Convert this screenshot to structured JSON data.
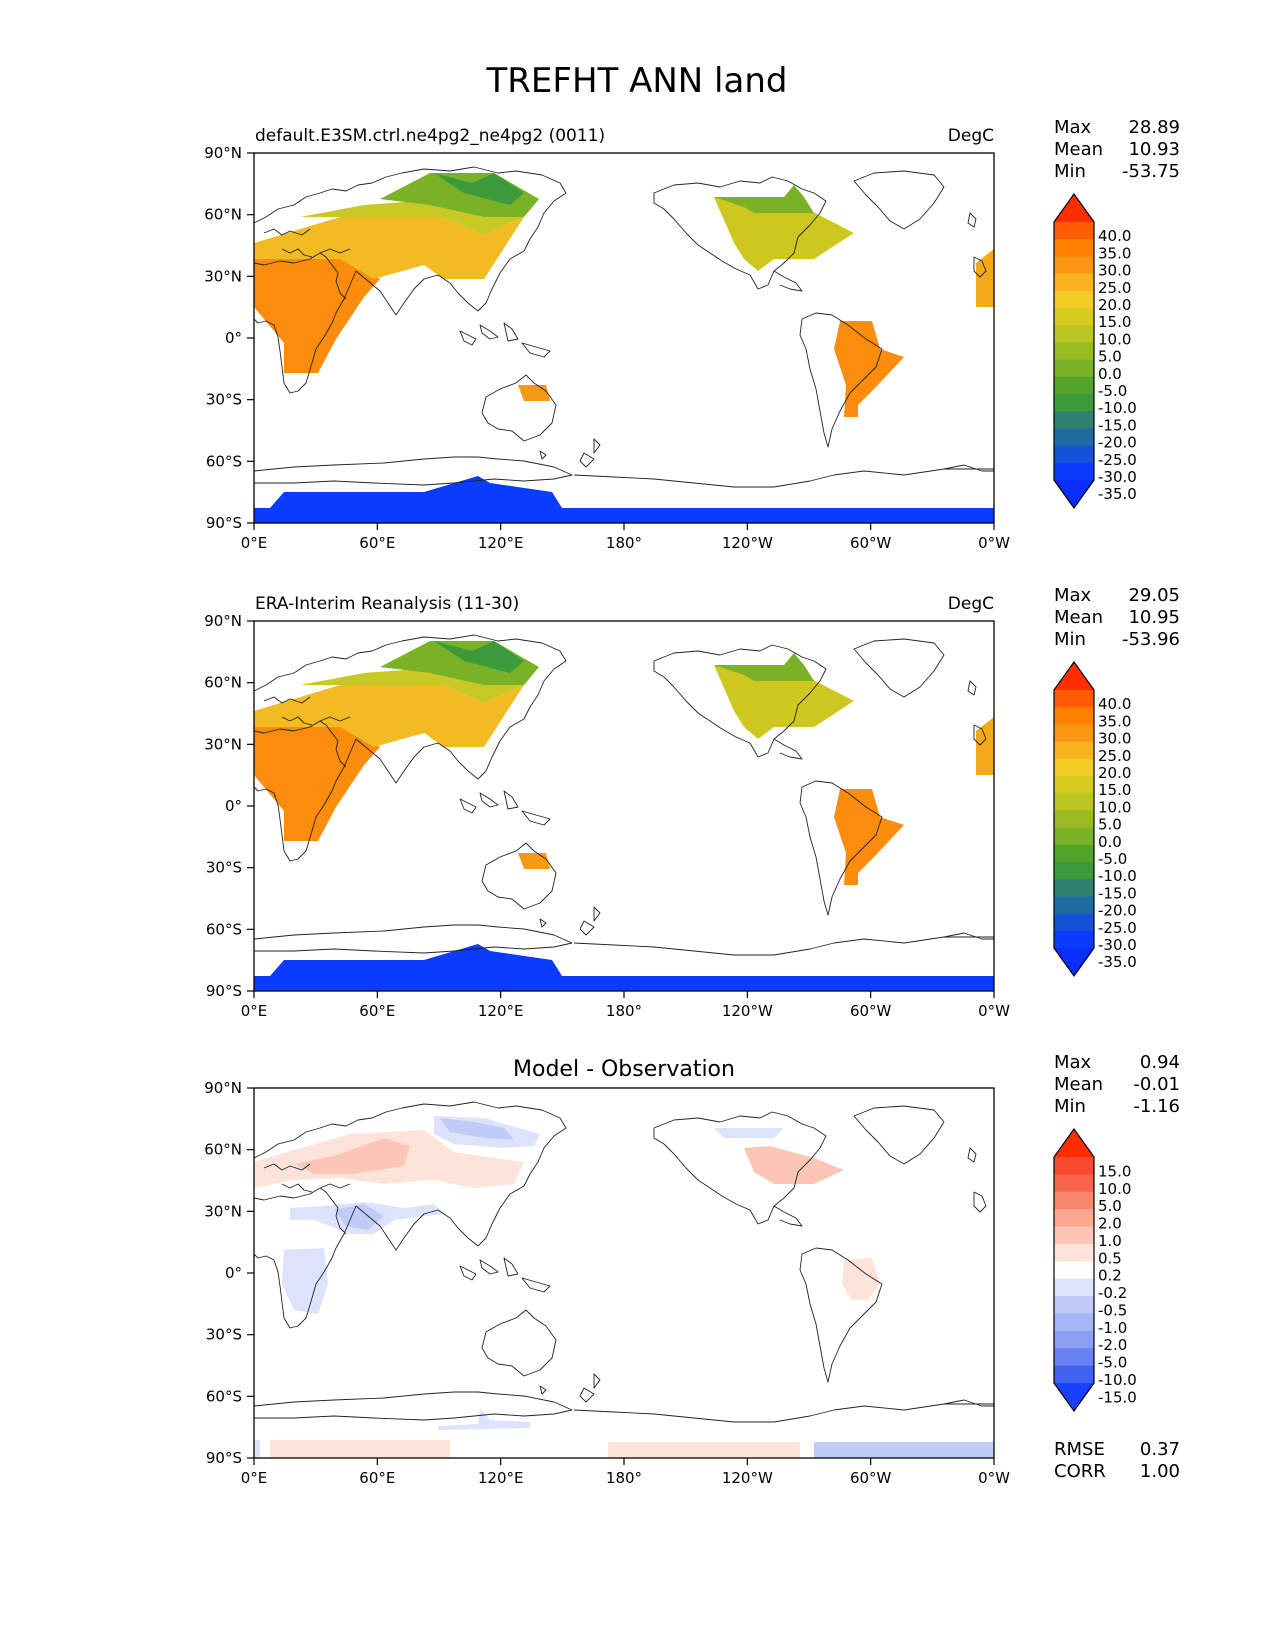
{
  "figure": {
    "title": "TREFHT ANN land"
  },
  "axes": {
    "x_ticks": [
      "0°E",
      "60°E",
      "120°E",
      "180°",
      "120°W",
      "60°W",
      "0°W"
    ],
    "y_ticks": [
      "90°N",
      "60°N",
      "30°N",
      "0°",
      "30°S",
      "60°S",
      "90°S"
    ]
  },
  "chart_data": [
    {
      "type": "heatmap",
      "title": "default.E3SM.ctrl.ne4pg2_ne4pg2 (0011)",
      "units": "DegC",
      "stats": [
        [
          "Max",
          "28.89"
        ],
        [
          "Mean",
          "10.93"
        ],
        [
          "Min",
          "-53.75"
        ]
      ],
      "colorbar": {
        "labels": [
          "40.0",
          "35.0",
          "30.0",
          "25.0",
          "20.0",
          "15.0",
          "10.0",
          "5.0",
          "0.0",
          "-5.0",
          "-10.0",
          "-15.0",
          "-20.0",
          "-25.0",
          "-30.0",
          "-35.0"
        ],
        "colors": [
          "#ff2d00",
          "#ff5a05",
          "#ff7f00",
          "#fb9615",
          "#f7b21e",
          "#f2cc25",
          "#d6cd1f",
          "#b9c624",
          "#9bbb23",
          "#7ab227",
          "#52a428",
          "#3d9a3a",
          "#2d8270",
          "#1e6da0",
          "#1351d6",
          "#0a3cff",
          "#0b2dff"
        ],
        "range": [
          -40,
          45
        ]
      },
      "lon_range": [
        0,
        360
      ],
      "lat_range": [
        -90,
        90
      ]
    },
    {
      "type": "heatmap",
      "title": "ERA-Interim Reanalysis (11-30)",
      "units": "DegC",
      "stats": [
        [
          "Max",
          "29.05"
        ],
        [
          "Mean",
          "10.95"
        ],
        [
          "Min",
          "-53.96"
        ]
      ],
      "colorbar": {
        "labels": [
          "40.0",
          "35.0",
          "30.0",
          "25.0",
          "20.0",
          "15.0",
          "10.0",
          "5.0",
          "0.0",
          "-5.0",
          "-10.0",
          "-15.0",
          "-20.0",
          "-25.0",
          "-30.0",
          "-35.0"
        ],
        "colors": [
          "#ff2d00",
          "#ff5a05",
          "#ff7f00",
          "#fb9615",
          "#f7b21e",
          "#f2cc25",
          "#d6cd1f",
          "#b9c624",
          "#9bbb23",
          "#7ab227",
          "#52a428",
          "#3d9a3a",
          "#2d8270",
          "#1e6da0",
          "#1351d6",
          "#0a3cff",
          "#0b2dff"
        ],
        "range": [
          -40,
          45
        ]
      },
      "lon_range": [
        0,
        360
      ],
      "lat_range": [
        -90,
        90
      ]
    },
    {
      "type": "heatmap",
      "title": "Model - Observation",
      "units": "",
      "stats": [
        [
          "Max",
          "0.94"
        ],
        [
          "Mean",
          "-0.01"
        ],
        [
          "Min",
          "-1.16"
        ]
      ],
      "footer_stats": [
        [
          "RMSE",
          "0.37"
        ],
        [
          "CORR",
          "1.00"
        ]
      ],
      "colorbar": {
        "labels": [
          "15.0",
          "10.0",
          "5.0",
          "2.0",
          "1.0",
          "0.5",
          "0.2",
          "-0.2",
          "-0.5",
          "-1.0",
          "-2.0",
          "-5.0",
          "-10.0",
          "-15.0"
        ],
        "colors": [
          "#ff2d00",
          "#f84a2f",
          "#f8654a",
          "#f9856b",
          "#fba891",
          "#fcc5b6",
          "#fde3da",
          "#ffffff",
          "#dde3fb",
          "#c0cbf8",
          "#a6b5f6",
          "#8a9ef4",
          "#6a82f1",
          "#3f62f3",
          "#1a3fff"
        ],
        "range": [
          -20,
          20
        ]
      },
      "lon_range": [
        0,
        360
      ],
      "lat_range": [
        -90,
        90
      ]
    }
  ]
}
